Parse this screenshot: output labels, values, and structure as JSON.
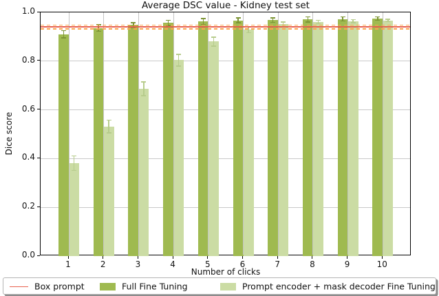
{
  "chart_data": {
    "type": "bar",
    "title": "Average DSC value - Kidney test set",
    "xlabel": "Number of clicks",
    "ylabel": "Dice score",
    "categories": [
      "1",
      "2",
      "3",
      "4",
      "5",
      "6",
      "7",
      "8",
      "9",
      "10"
    ],
    "series": [
      {
        "name": "Full Fine Tuning",
        "color": "#9fba50",
        "error_color": "#7c9434",
        "values": [
          0.91,
          0.936,
          0.948,
          0.957,
          0.962,
          0.967,
          0.968,
          0.971,
          0.973,
          0.974
        ],
        "errors": [
          0.015,
          0.013,
          0.01,
          0.01,
          0.012,
          0.01,
          0.009,
          0.01,
          0.008,
          0.007
        ]
      },
      {
        "name": "Prompt encoder + mask decoder Fine Tuning",
        "color": "#cbdca4",
        "error_color": "#b7cc8c",
        "values": [
          0.381,
          0.532,
          0.686,
          0.804,
          0.88,
          0.929,
          0.951,
          0.96,
          0.964,
          0.967
        ],
        "errors": [
          0.03,
          0.026,
          0.028,
          0.024,
          0.019,
          0.013,
          0.009,
          0.007,
          0.006,
          0.005
        ]
      }
    ],
    "reference_line": {
      "name": "Box prompt",
      "value": 0.94,
      "color": "#e8604c",
      "band_upper": 0.948,
      "band_lower": 0.933,
      "band_color": "#fca44e",
      "band_style": "dashed"
    },
    "ylim": [
      0.0,
      1.0
    ],
    "yticks": [
      0.0,
      0.2,
      0.4,
      0.6,
      0.8,
      1.0
    ],
    "grid": true,
    "legend_position": "bottom"
  },
  "colors": {
    "grid": "#c9c9c9",
    "axis": "#000000",
    "background": "#ffffff"
  }
}
